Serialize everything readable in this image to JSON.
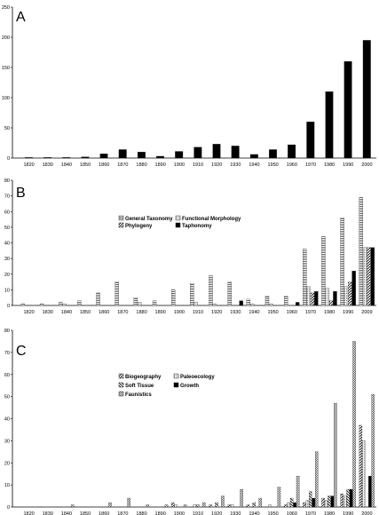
{
  "chart_data": [
    {
      "type": "bar",
      "panel_label": "A",
      "categories": [
        "1820",
        "1830",
        "1840",
        "1850",
        "1860",
        "1870",
        "1880",
        "1890",
        "1900",
        "1910",
        "1920",
        "1930",
        "1940",
        "1950",
        "1960",
        "1970",
        "1980",
        "1990",
        "2000"
      ],
      "series": [
        {
          "values": [
            1,
            1,
            1,
            2,
            7,
            14,
            10,
            3,
            11,
            18,
            23,
            20,
            6,
            14,
            22,
            60,
            110,
            160,
            195
          ],
          "color": "#000000",
          "pattern": "solid"
        }
      ],
      "ylim": [
        0,
        250
      ],
      "yticks": [
        "0",
        "50",
        "100",
        "150",
        "200",
        "250"
      ],
      "xlabel": "",
      "ylabel": "",
      "grid": false
    },
    {
      "type": "bar",
      "panel_label": "B",
      "categories": [
        "1820",
        "1830",
        "1840",
        "1850",
        "1860",
        "1870",
        "1880",
        "1890",
        "1900",
        "1910",
        "1920",
        "1930",
        "1940",
        "1950",
        "1960",
        "1970",
        "1980",
        "1990",
        "2009"
      ],
      "series": [
        {
          "name": "General Taxonomy",
          "pattern": "hstripe",
          "values": [
            1,
            1,
            2,
            3,
            8,
            15,
            5,
            3,
            10,
            14,
            19,
            15,
            4,
            6,
            6,
            36,
            44,
            56,
            69
          ]
        },
        {
          "name": "Functional Morphology",
          "pattern": "dots",
          "values": [
            0,
            0,
            1,
            0,
            0,
            0,
            2,
            0,
            0,
            2,
            1,
            0,
            1,
            1,
            0,
            12,
            11,
            12,
            37
          ]
        },
        {
          "name": "Phylogeny",
          "pattern": "diag",
          "values": [
            0,
            0,
            0,
            0,
            0,
            0,
            0,
            0,
            0,
            0,
            0,
            0,
            0,
            0,
            0,
            8,
            3,
            15,
            37
          ]
        },
        {
          "name": "Taphonomy",
          "pattern": "solid",
          "values": [
            0,
            0,
            0,
            0,
            0,
            0,
            0,
            0,
            0,
            0,
            0,
            3,
            0,
            0,
            2,
            9,
            9,
            22,
            37
          ]
        }
      ],
      "ylim": [
        0,
        80
      ],
      "yticks": [
        "0",
        "10",
        "20",
        "30",
        "40",
        "50",
        "60",
        "70",
        "80"
      ],
      "legend_position": "upper-left",
      "xlabel": "",
      "ylabel": "",
      "grid": false
    },
    {
      "type": "bar",
      "panel_label": "C",
      "categories": [
        "1820",
        "1830",
        "1840",
        "1850",
        "1860",
        "1870",
        "1880",
        "1890",
        "1900",
        "1910",
        "1920",
        "1930",
        "1940",
        "1950",
        "1960",
        "1970",
        "1980",
        "1990",
        "2000"
      ],
      "series": [
        {
          "name": "Biogeography",
          "pattern": "diag",
          "values": [
            0,
            0,
            0,
            0,
            0,
            0,
            0,
            0,
            2,
            0,
            1,
            1,
            1,
            0,
            1,
            2,
            4,
            6,
            37
          ]
        },
        {
          "name": "Paleoecology",
          "pattern": "dots",
          "values": [
            0,
            0,
            0,
            0,
            0,
            0,
            0,
            0,
            1,
            1,
            0,
            1,
            0,
            1,
            2,
            3,
            3,
            5,
            30
          ]
        },
        {
          "name": "Soft Tissue",
          "pattern": "diag2",
          "values": [
            0,
            0,
            0,
            0,
            0,
            0,
            0,
            0,
            0,
            1,
            2,
            0,
            2,
            0,
            4,
            7,
            5,
            8,
            0
          ]
        },
        {
          "name": "Growth",
          "pattern": "solid",
          "values": [
            0,
            0,
            0,
            0,
            0,
            0,
            0,
            0,
            0,
            0,
            0,
            0,
            0,
            0,
            2,
            4,
            5,
            8,
            14
          ]
        },
        {
          "name": "Faunistics",
          "pattern": "checker",
          "values": [
            0,
            0,
            1,
            0,
            2,
            4,
            1,
            1,
            1,
            2,
            5,
            8,
            4,
            9,
            14,
            25,
            47,
            75,
            51
          ]
        }
      ],
      "ylim": [
        0,
        80
      ],
      "yticks": [
        "0",
        "10",
        "20",
        "30",
        "40",
        "50",
        "60",
        "70",
        "80"
      ],
      "legend_position": "upper-left",
      "xlabel": "",
      "ylabel": "",
      "grid": false
    }
  ]
}
